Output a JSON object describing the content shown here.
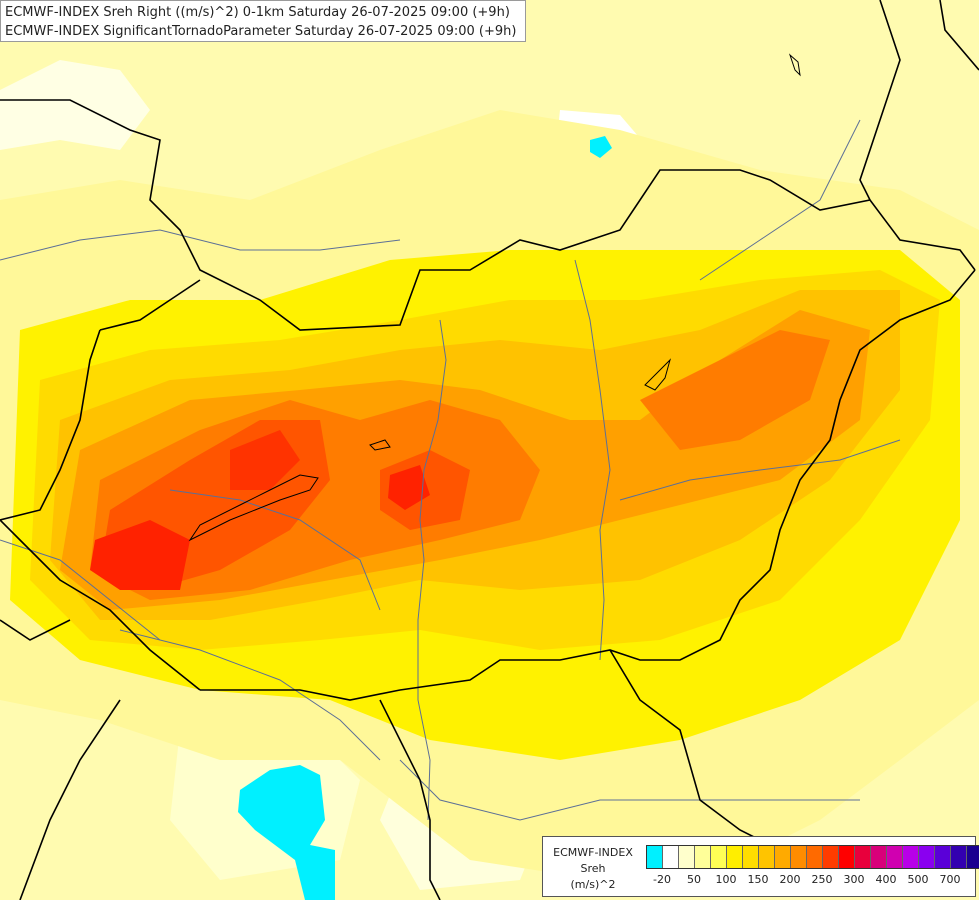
{
  "title": {
    "line1": "ECMWF-INDEX Sreh Right ((m/s)^2) 0-1km Saturday 26-07-2025 09:00 (+9h)",
    "line2": "ECMWF-INDEX SignificantTornadoParameter Saturday 26-07-2025 09:00 (+9h)"
  },
  "legend": {
    "line1": "ECMWF-INDEX",
    "line2": "Sreh",
    "line3": "(m/s)^2",
    "colors": [
      "#00f0ff",
      "#ffffff",
      "#ffffcc",
      "#ffff99",
      "#ffff55",
      "#ffee00",
      "#ffdd00",
      "#ffc400",
      "#ffaa00",
      "#ff8c00",
      "#ff6a00",
      "#ff3c00",
      "#ff0000",
      "#e8003c",
      "#d8007a",
      "#d000b0",
      "#b800e8",
      "#8a00f0",
      "#5a00d8",
      "#3300b0",
      "#1a0090"
    ],
    "ticks": [
      "-20",
      "50",
      "100",
      "150",
      "200",
      "250",
      "300",
      "400",
      "500",
      "700"
    ]
  },
  "palette": {
    "background": "#fffbb0",
    "pale": "#ffffd6",
    "light_yellow": "#fff899",
    "yellow": "#fff200",
    "gold": "#ffdb00",
    "amber": "#ffc200",
    "orange": "#ffa000",
    "dark_orange": "#ff7c00",
    "red_orange": "#ff5500",
    "red": "#ff2200",
    "cyan": "#00f0ff",
    "white": "#ffffff",
    "border": "#000000",
    "river": "#5c6f96"
  }
}
